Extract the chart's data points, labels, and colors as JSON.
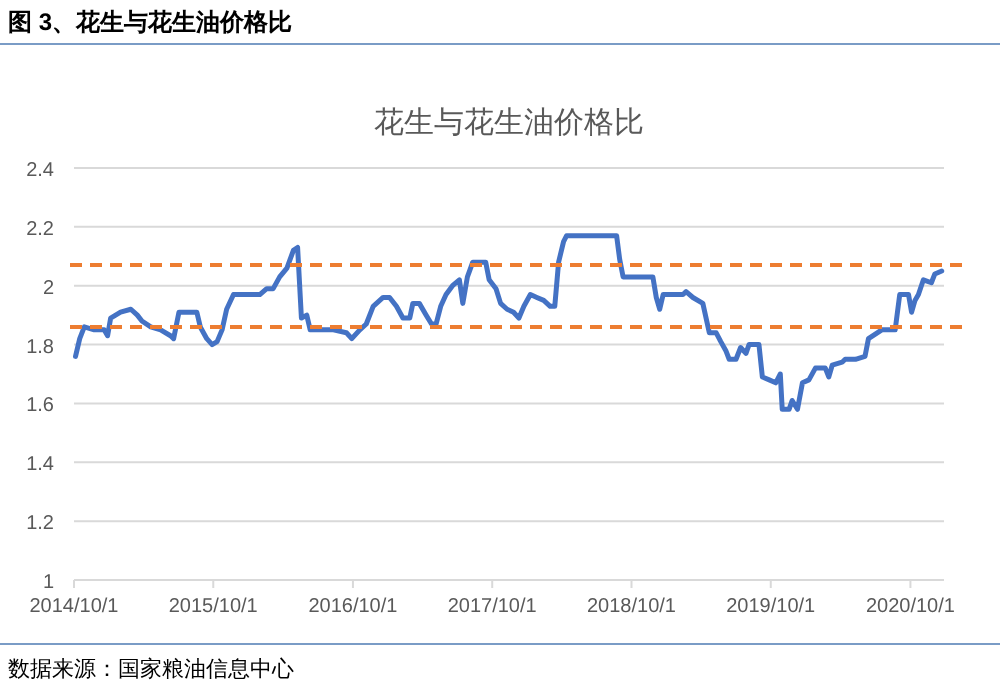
{
  "chart_data": {
    "type": "line",
    "title": "图 3、花生与花生油价格比",
    "subtitle": "花生与花生油价格比",
    "annotations": [
      "数据来源：国家粮油信息中心"
    ],
    "x": [
      "2014-10-05",
      "2014-10-16",
      "2014-10-28",
      "2014-11-23",
      "2014-12-19",
      "2014-12-28",
      "2015-01-05",
      "2015-01-31",
      "2015-02-27",
      "2015-03-16",
      "2015-03-28",
      "2015-04-20",
      "2015-05-16",
      "2015-06-11",
      "2015-06-19",
      "2015-07-03",
      "2015-08-19",
      "2015-08-28",
      "2015-09-14",
      "2015-09-28",
      "2015-10-11",
      "2015-10-24",
      "2015-11-05",
      "2015-11-23",
      "2016-01-31",
      "2016-02-18",
      "2016-03-06",
      "2016-03-23",
      "2016-04-11",
      "2016-04-28",
      "2016-05-09",
      "2016-05-19",
      "2016-06-02",
      "2016-06-11",
      "2016-08-11",
      "2016-09-14",
      "2016-09-28",
      "2016-10-19",
      "2016-11-05",
      "2016-11-23",
      "2016-12-19",
      "2017-01-05",
      "2017-01-23",
      "2017-02-09",
      "2017-02-27",
      "2017-03-07",
      "2017-03-24",
      "2017-04-11",
      "2017-04-25",
      "2017-05-07",
      "2017-05-19",
      "2017-06-02",
      "2017-06-19",
      "2017-07-07",
      "2017-07-16",
      "2017-07-28",
      "2017-08-11",
      "2017-09-14",
      "2017-09-23",
      "2017-10-11",
      "2017-10-23",
      "2017-11-09",
      "2017-11-26",
      "2017-12-10",
      "2017-12-23",
      "2018-01-09",
      "2018-01-26",
      "2018-02-13",
      "2018-03-02",
      "2018-03-14",
      "2018-03-24",
      "2018-04-06",
      "2018-04-14",
      "2018-08-23",
      "2018-08-31",
      "2018-09-09",
      "2018-11-26",
      "2018-12-05",
      "2018-12-14",
      "2018-12-23",
      "2019-02-13",
      "2019-02-21",
      "2019-03-11",
      "2019-04-06",
      "2019-04-23",
      "2019-05-11",
      "2019-05-23",
      "2019-06-05",
      "2019-06-14",
      "2019-07-02",
      "2019-07-14",
      "2019-07-28",
      "2019-08-05",
      "2019-08-31",
      "2019-09-09",
      "2019-09-27",
      "2019-10-14",
      "2019-10-26",
      "2019-10-31",
      "2019-11-18",
      "2019-11-26",
      "2019-12-10",
      "2019-12-23",
      "2020-01-09",
      "2020-01-26",
      "2020-02-21",
      "2020-03-01",
      "2020-03-10",
      "2020-04-05",
      "2020-04-13",
      "2020-05-10",
      "2020-06-04",
      "2020-06-13",
      "2020-07-18",
      "2020-08-22",
      "2020-09-03",
      "2020-09-26",
      "2020-10-04",
      "2020-10-13",
      "2020-10-22",
      "2020-11-04",
      "2020-11-25",
      "2020-12-04",
      "2020-12-22"
    ],
    "series": [
      {
        "color": "#4472c4",
        "values": [
          1.76,
          1.82,
          1.86,
          1.85,
          1.85,
          1.83,
          1.89,
          1.91,
          1.92,
          1.9,
          1.88,
          1.86,
          1.85,
          1.83,
          1.82,
          1.91,
          1.91,
          1.86,
          1.82,
          1.8,
          1.81,
          1.85,
          1.92,
          1.97,
          1.97,
          1.99,
          1.99,
          2.03,
          2.06,
          2.12,
          2.13,
          1.89,
          1.9,
          1.85,
          1.85,
          1.84,
          1.82,
          1.85,
          1.87,
          1.93,
          1.96,
          1.96,
          1.93,
          1.89,
          1.89,
          1.94,
          1.94,
          1.9,
          1.87,
          1.87,
          1.93,
          1.97,
          2.0,
          2.02,
          1.94,
          2.03,
          2.08,
          2.08,
          2.02,
          1.99,
          1.94,
          1.92,
          1.91,
          1.89,
          1.93,
          1.97,
          1.96,
          1.95,
          1.93,
          1.93,
          2.08,
          2.15,
          2.17,
          2.17,
          2.09,
          2.03,
          2.03,
          1.96,
          1.92,
          1.97,
          1.97,
          1.98,
          1.96,
          1.94,
          1.84,
          1.84,
          1.81,
          1.78,
          1.75,
          1.75,
          1.79,
          1.77,
          1.8,
          1.8,
          1.69,
          1.68,
          1.67,
          1.7,
          1.58,
          1.58,
          1.61,
          1.58,
          1.67,
          1.68,
          1.72,
          1.72,
          1.69,
          1.73,
          1.74,
          1.75,
          1.75,
          1.76,
          1.82,
          1.85,
          1.85,
          1.97,
          1.97,
          1.91,
          1.95,
          1.97,
          2.02,
          2.01,
          2.04,
          2.05
        ]
      }
    ],
    "xlim": [
      "2014-10-01",
      "2020-12-28"
    ],
    "xticks": [
      {
        "value": "2014-10-01",
        "label": "2014/10/1"
      },
      {
        "value": "2015-10-01",
        "label": "2015/10/1"
      },
      {
        "value": "2016-10-01",
        "label": "2016/10/1"
      },
      {
        "value": "2017-10-01",
        "label": "2017/10/1"
      },
      {
        "value": "2018-10-01",
        "label": "2018/10/1"
      },
      {
        "value": "2019-10-01",
        "label": "2019/10/1"
      },
      {
        "value": "2020-10-01",
        "label": "2020/10/1"
      }
    ],
    "ylim": [
      1,
      2.4
    ],
    "yticks": [
      1,
      1.2,
      1.4,
      1.6,
      1.8,
      2,
      2.2,
      2.4
    ],
    "grid": "y",
    "ref_lines": [
      {
        "axis": "y",
        "value": 2.07,
        "color": "#ed7d31",
        "line_style": "dashed"
      },
      {
        "axis": "y",
        "value": 1.86,
        "color": "#ed7d31",
        "line_style": "dashed"
      }
    ]
  }
}
